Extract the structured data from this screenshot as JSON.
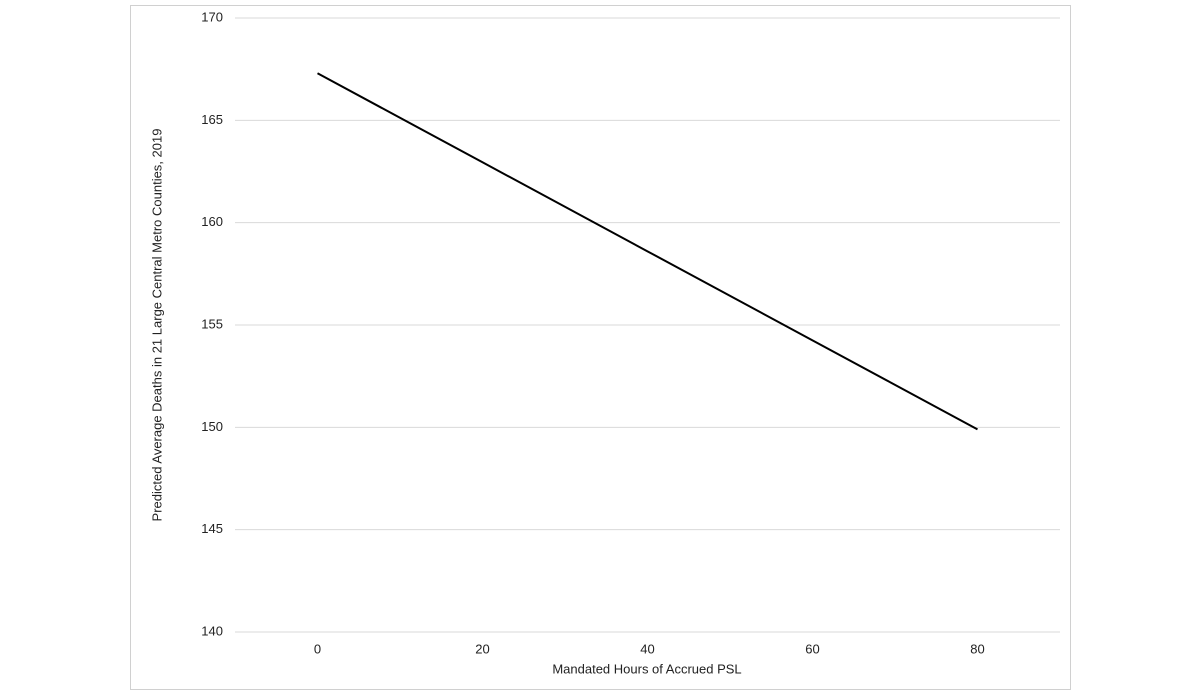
{
  "chart_data": {
    "type": "line",
    "x": [
      0,
      20,
      40,
      60,
      80
    ],
    "series": [
      {
        "name": "Predicted average deaths",
        "color": "#000000",
        "values": [
          167.3,
          162.95,
          158.6,
          154.25,
          149.9
        ]
      }
    ],
    "xlabel": "Mandated Hours of Accrued PSL",
    "ylabel": "Predicted Average Deaths in 21 Large Central Metro Counties, 2019",
    "xlim": [
      -10,
      90
    ],
    "xticks": [
      0,
      20,
      40,
      60,
      80
    ],
    "ylim": [
      140,
      170
    ],
    "yticks": [
      140,
      145,
      150,
      155,
      160,
      165,
      170
    ],
    "grid": true
  }
}
